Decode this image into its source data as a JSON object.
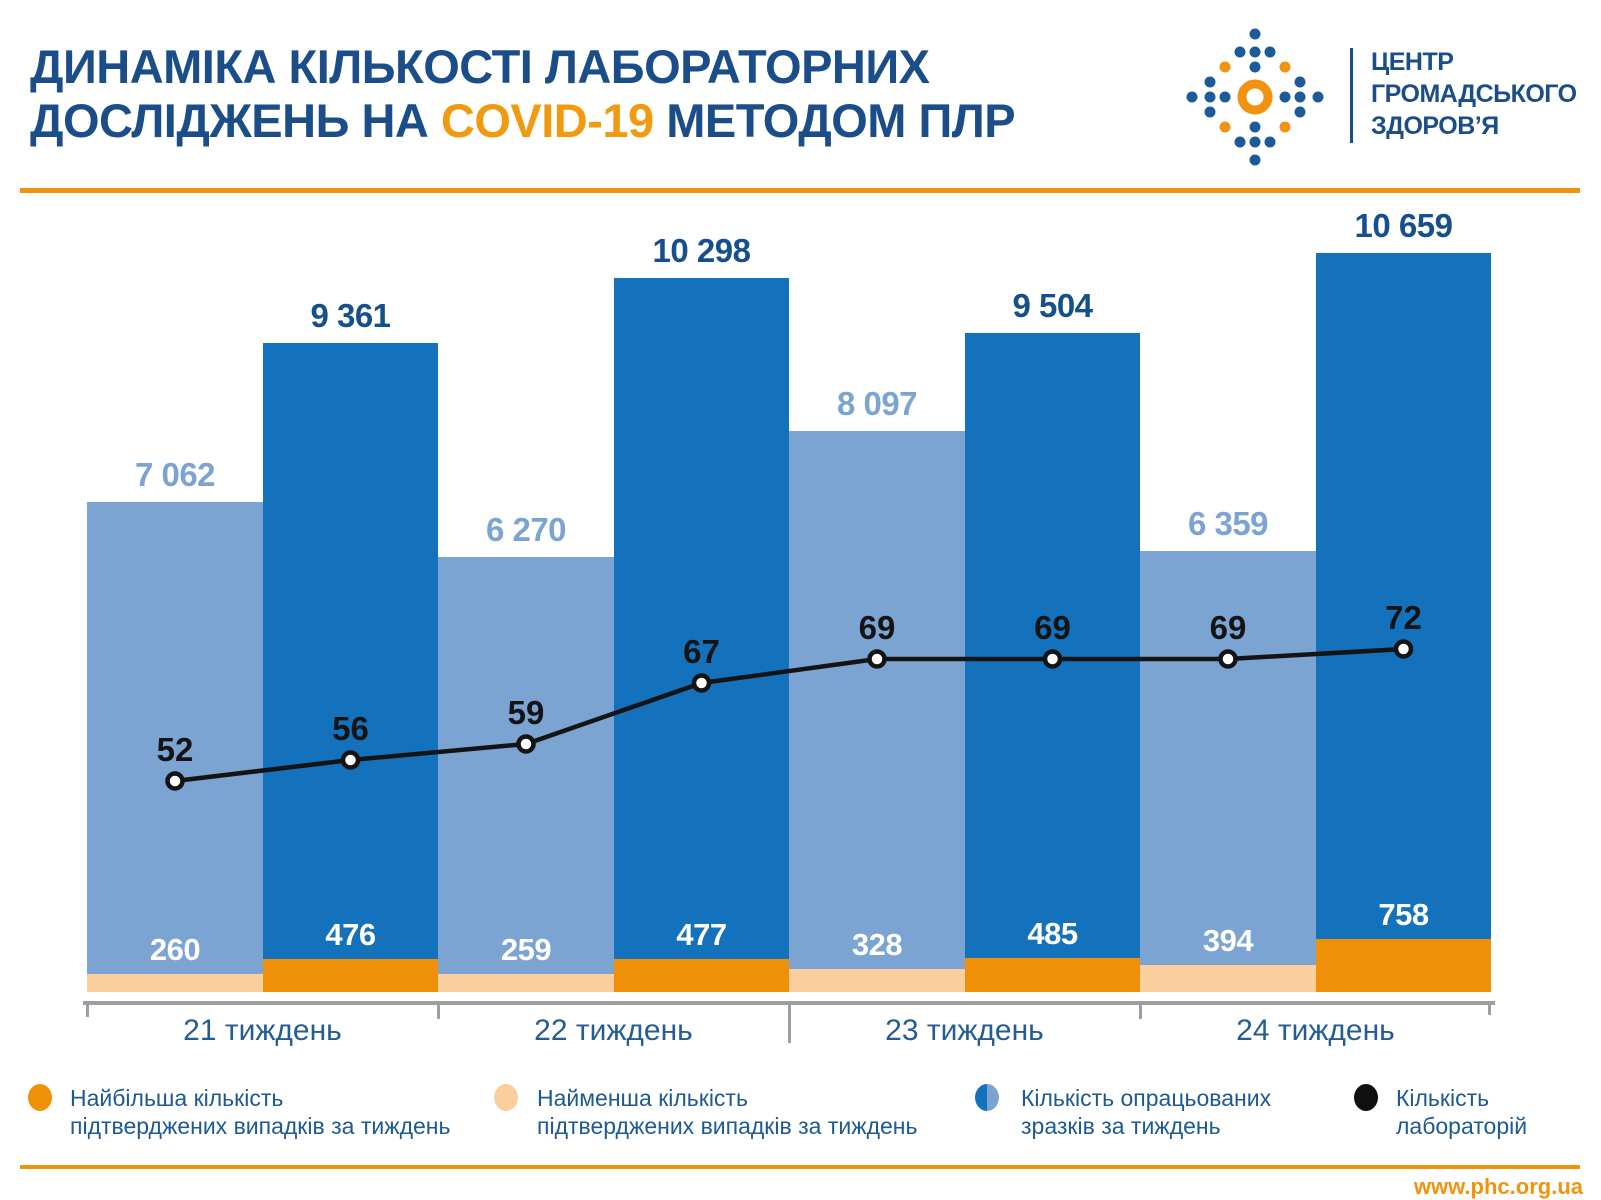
{
  "header": {
    "title_line1": "ДИНАМІКА КІЛЬКОСТІ ЛАБОРАТОРНИХ",
    "title_line2_prefix": "ДОСЛІДЖЕНЬ НА ",
    "title_highlight": "COVID-19",
    "title_line2_suffix": " МЕТОДОМ ПЛР",
    "logo_line1": "ЦЕНТР",
    "logo_line2": "ГРОМАДСЬКОГО",
    "logo_line3": "ЗДОРОВ’Я"
  },
  "colors": {
    "navy": "#1b4d88",
    "dark_blue": "#1471bb",
    "light_blue": "#7ba4d2",
    "orange": "#ee9109",
    "peach": "#fbcf9d",
    "line_black": "#141414",
    "axis_gray": "#9e9e9e",
    "highlight_orange": "#f09a10"
  },
  "chart_data": {
    "type": "bar+line",
    "categories": [
      "21 тиждень",
      "22 тиждень",
      "23 тиждень",
      "24 тиждень"
    ],
    "bars_per_category": 2,
    "series": [
      {
        "name": "Кількість опрацьованих зразків за тиждень",
        "type": "bar",
        "tones": [
          "light",
          "dark",
          "light",
          "dark",
          "light",
          "dark",
          "light",
          "dark"
        ],
        "values": [
          7062,
          9361,
          6270,
          10298,
          8097,
          9504,
          6359,
          10659
        ]
      },
      {
        "name": "Найменша кількість підтверджених випадків за тиждень",
        "type": "bar_overlay",
        "color": "peach",
        "values": [
          260,
          null,
          259,
          null,
          328,
          null,
          394,
          null
        ]
      },
      {
        "name": "Найбільша кількість підтверджених випадків за тиждень",
        "type": "bar_overlay",
        "color": "orange",
        "values": [
          null,
          476,
          null,
          477,
          null,
          485,
          null,
          758
        ]
      },
      {
        "name": "Кількість лабораторій",
        "type": "line",
        "color": "black",
        "values": [
          52,
          56,
          59,
          67,
          69,
          69,
          69,
          72
        ]
      }
    ],
    "ylim": [
      0,
      10659
    ],
    "grid": false,
    "legend_position": "bottom"
  },
  "legend": [
    {
      "marker": "orange",
      "line1": "Найбільша кількість",
      "line2": "підтверджених випадків за тиждень"
    },
    {
      "marker": "peach",
      "line1": "Найменша кількість",
      "line2": "підтверджених випадків за тиждень"
    },
    {
      "marker": "two-tone-blue",
      "line1": "Кількість опрацьованих",
      "line2": "зразків за тиждень"
    },
    {
      "marker": "black",
      "line1": "Кількість",
      "line2": "лабораторій"
    }
  ],
  "footer": {
    "url": "www.phc.org.ua"
  }
}
